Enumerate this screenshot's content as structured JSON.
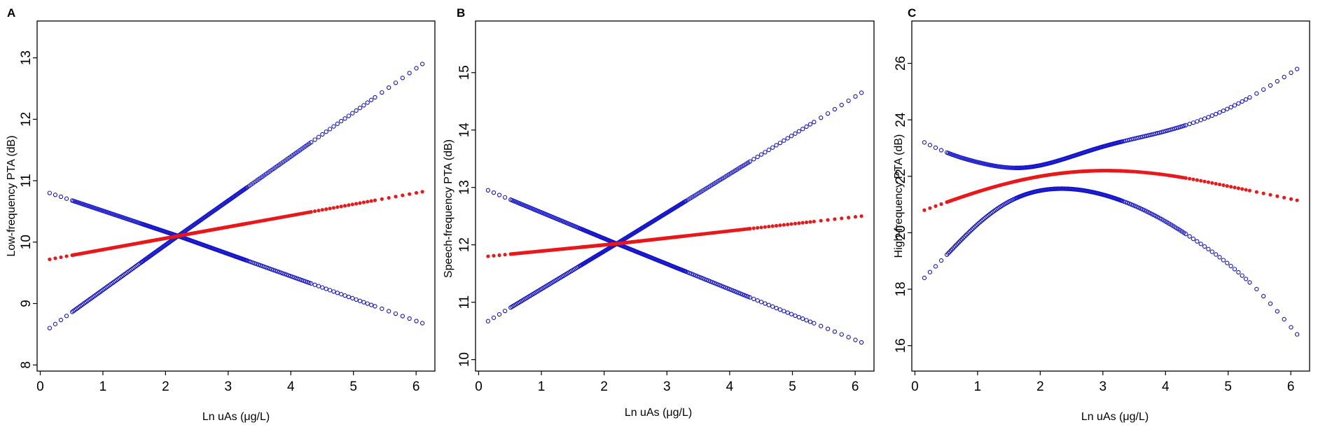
{
  "chart_data": [
    {
      "panel": "A",
      "type": "scatter",
      "xlabel": "Ln uAs (μg/L)",
      "ylabel": "Low-frequency PTA (dB)",
      "xticks": [
        0,
        1,
        2,
        3,
        4,
        5,
        6
      ],
      "yticks": [
        8,
        9,
        10,
        11,
        12,
        13
      ],
      "xlim": [
        -0.05,
        6.3
      ],
      "ylim": [
        7.9,
        13.6
      ],
      "grid": false,
      "colors": {
        "fit": "#e8191b",
        "ci": "#1414c8"
      },
      "shape": "linear",
      "series": [
        {
          "role": "fit",
          "x": [
            0.15,
            2.2,
            6.1
          ],
          "y": [
            9.72,
            10.1,
            10.82
          ]
        },
        {
          "role": "ci_upper",
          "x": [
            0.15,
            2.2,
            6.1
          ],
          "y": [
            10.8,
            10.1,
            12.9
          ]
        },
        {
          "role": "ci_lower",
          "x": [
            0.15,
            2.2,
            6.1
          ],
          "y": [
            8.6,
            10.1,
            8.68
          ]
        }
      ]
    },
    {
      "panel": "B",
      "type": "scatter",
      "xlabel": "Ln uAs (μg/L)",
      "ylabel": "Speech-frequency PTA (dB)",
      "xticks": [
        0,
        1,
        2,
        3,
        4,
        5,
        6
      ],
      "yticks": [
        10,
        11,
        12,
        13,
        14,
        15
      ],
      "xlim": [
        -0.05,
        6.3
      ],
      "ylim": [
        9.8,
        15.9
      ],
      "grid": false,
      "colors": {
        "fit": "#e8191b",
        "ci": "#1414c8"
      },
      "shape": "linear",
      "series": [
        {
          "role": "fit",
          "x": [
            0.15,
            2.2,
            6.1
          ],
          "y": [
            11.8,
            12.02,
            12.5
          ]
        },
        {
          "role": "ci_upper",
          "x": [
            0.15,
            2.2,
            6.1
          ],
          "y": [
            12.95,
            12.02,
            14.65
          ]
        },
        {
          "role": "ci_lower",
          "x": [
            0.15,
            2.2,
            6.1
          ],
          "y": [
            10.67,
            12.02,
            10.3
          ]
        }
      ]
    },
    {
      "panel": "C",
      "type": "scatter",
      "xlabel": "Ln uAs (μg/L)",
      "ylabel": "High-frequency PTA (dB)",
      "xticks": [
        0,
        1,
        2,
        3,
        4,
        5,
        6
      ],
      "yticks": [
        16,
        18,
        20,
        22,
        24,
        26
      ],
      "xlim": [
        -0.05,
        6.3
      ],
      "ylim": [
        15.1,
        27.5
      ],
      "grid": false,
      "colors": {
        "fit": "#e8191b",
        "ci": "#1414c8"
      },
      "shape": "curve",
      "series": [
        {
          "role": "fit",
          "x": [
            0.15,
            1.0,
            2.0,
            3.0,
            4.0,
            5.0,
            6.1
          ],
          "y": [
            20.8,
            21.45,
            22.0,
            22.2,
            22.05,
            21.65,
            21.15
          ]
        },
        {
          "role": "ci_upper",
          "x": [
            0.15,
            0.5,
            1.0,
            1.7,
            2.5,
            3.0,
            4.0,
            5.0,
            6.1
          ],
          "y": [
            23.2,
            22.85,
            22.5,
            22.3,
            22.7,
            23.05,
            23.6,
            24.4,
            25.8
          ]
        },
        {
          "role": "ci_lower",
          "x": [
            0.15,
            0.5,
            1.0,
            1.5,
            2.2,
            3.0,
            4.0,
            4.5,
            5.0,
            5.5,
            6.1
          ],
          "y": [
            18.4,
            19.2,
            20.3,
            21.1,
            21.55,
            21.35,
            20.4,
            19.7,
            18.9,
            17.9,
            16.4
          ]
        }
      ]
    }
  ]
}
